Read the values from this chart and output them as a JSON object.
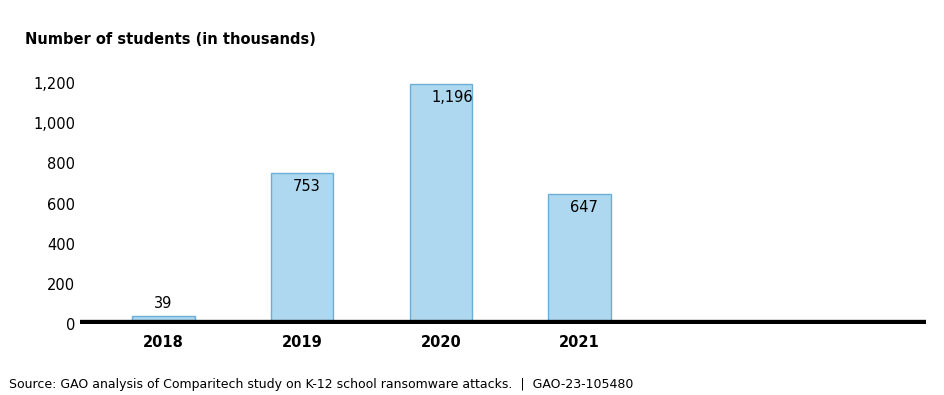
{
  "categories": [
    "2018",
    "2019",
    "2020",
    "2021"
  ],
  "values": [
    39,
    753,
    1196,
    647
  ],
  "bar_color": "#add8f0",
  "bar_edgecolor": "#6baed6",
  "bar_linewidth": 1.0,
  "ylabel": "Number of students (in thousands)",
  "ylim": [
    0,
    1300
  ],
  "yticks": [
    0,
    200,
    400,
    600,
    800,
    1000,
    1200
  ],
  "ytick_labels": [
    "0",
    "200",
    "400",
    "600",
    "800",
    "1,000",
    "1,200"
  ],
  "bar_labels": [
    "39",
    "753",
    "1,196",
    "647"
  ],
  "label_fontsize": 10.5,
  "axis_fontsize": 10.5,
  "ylabel_fontsize": 10.5,
  "source_text": "Source: GAO analysis of Comparitech study on K-12 school ransomware attacks.  |  GAO-23-105480",
  "source_fontsize": 9,
  "background_color": "#ffffff",
  "bar_width": 0.45,
  "xlim": [
    -0.5,
    5.5
  ]
}
